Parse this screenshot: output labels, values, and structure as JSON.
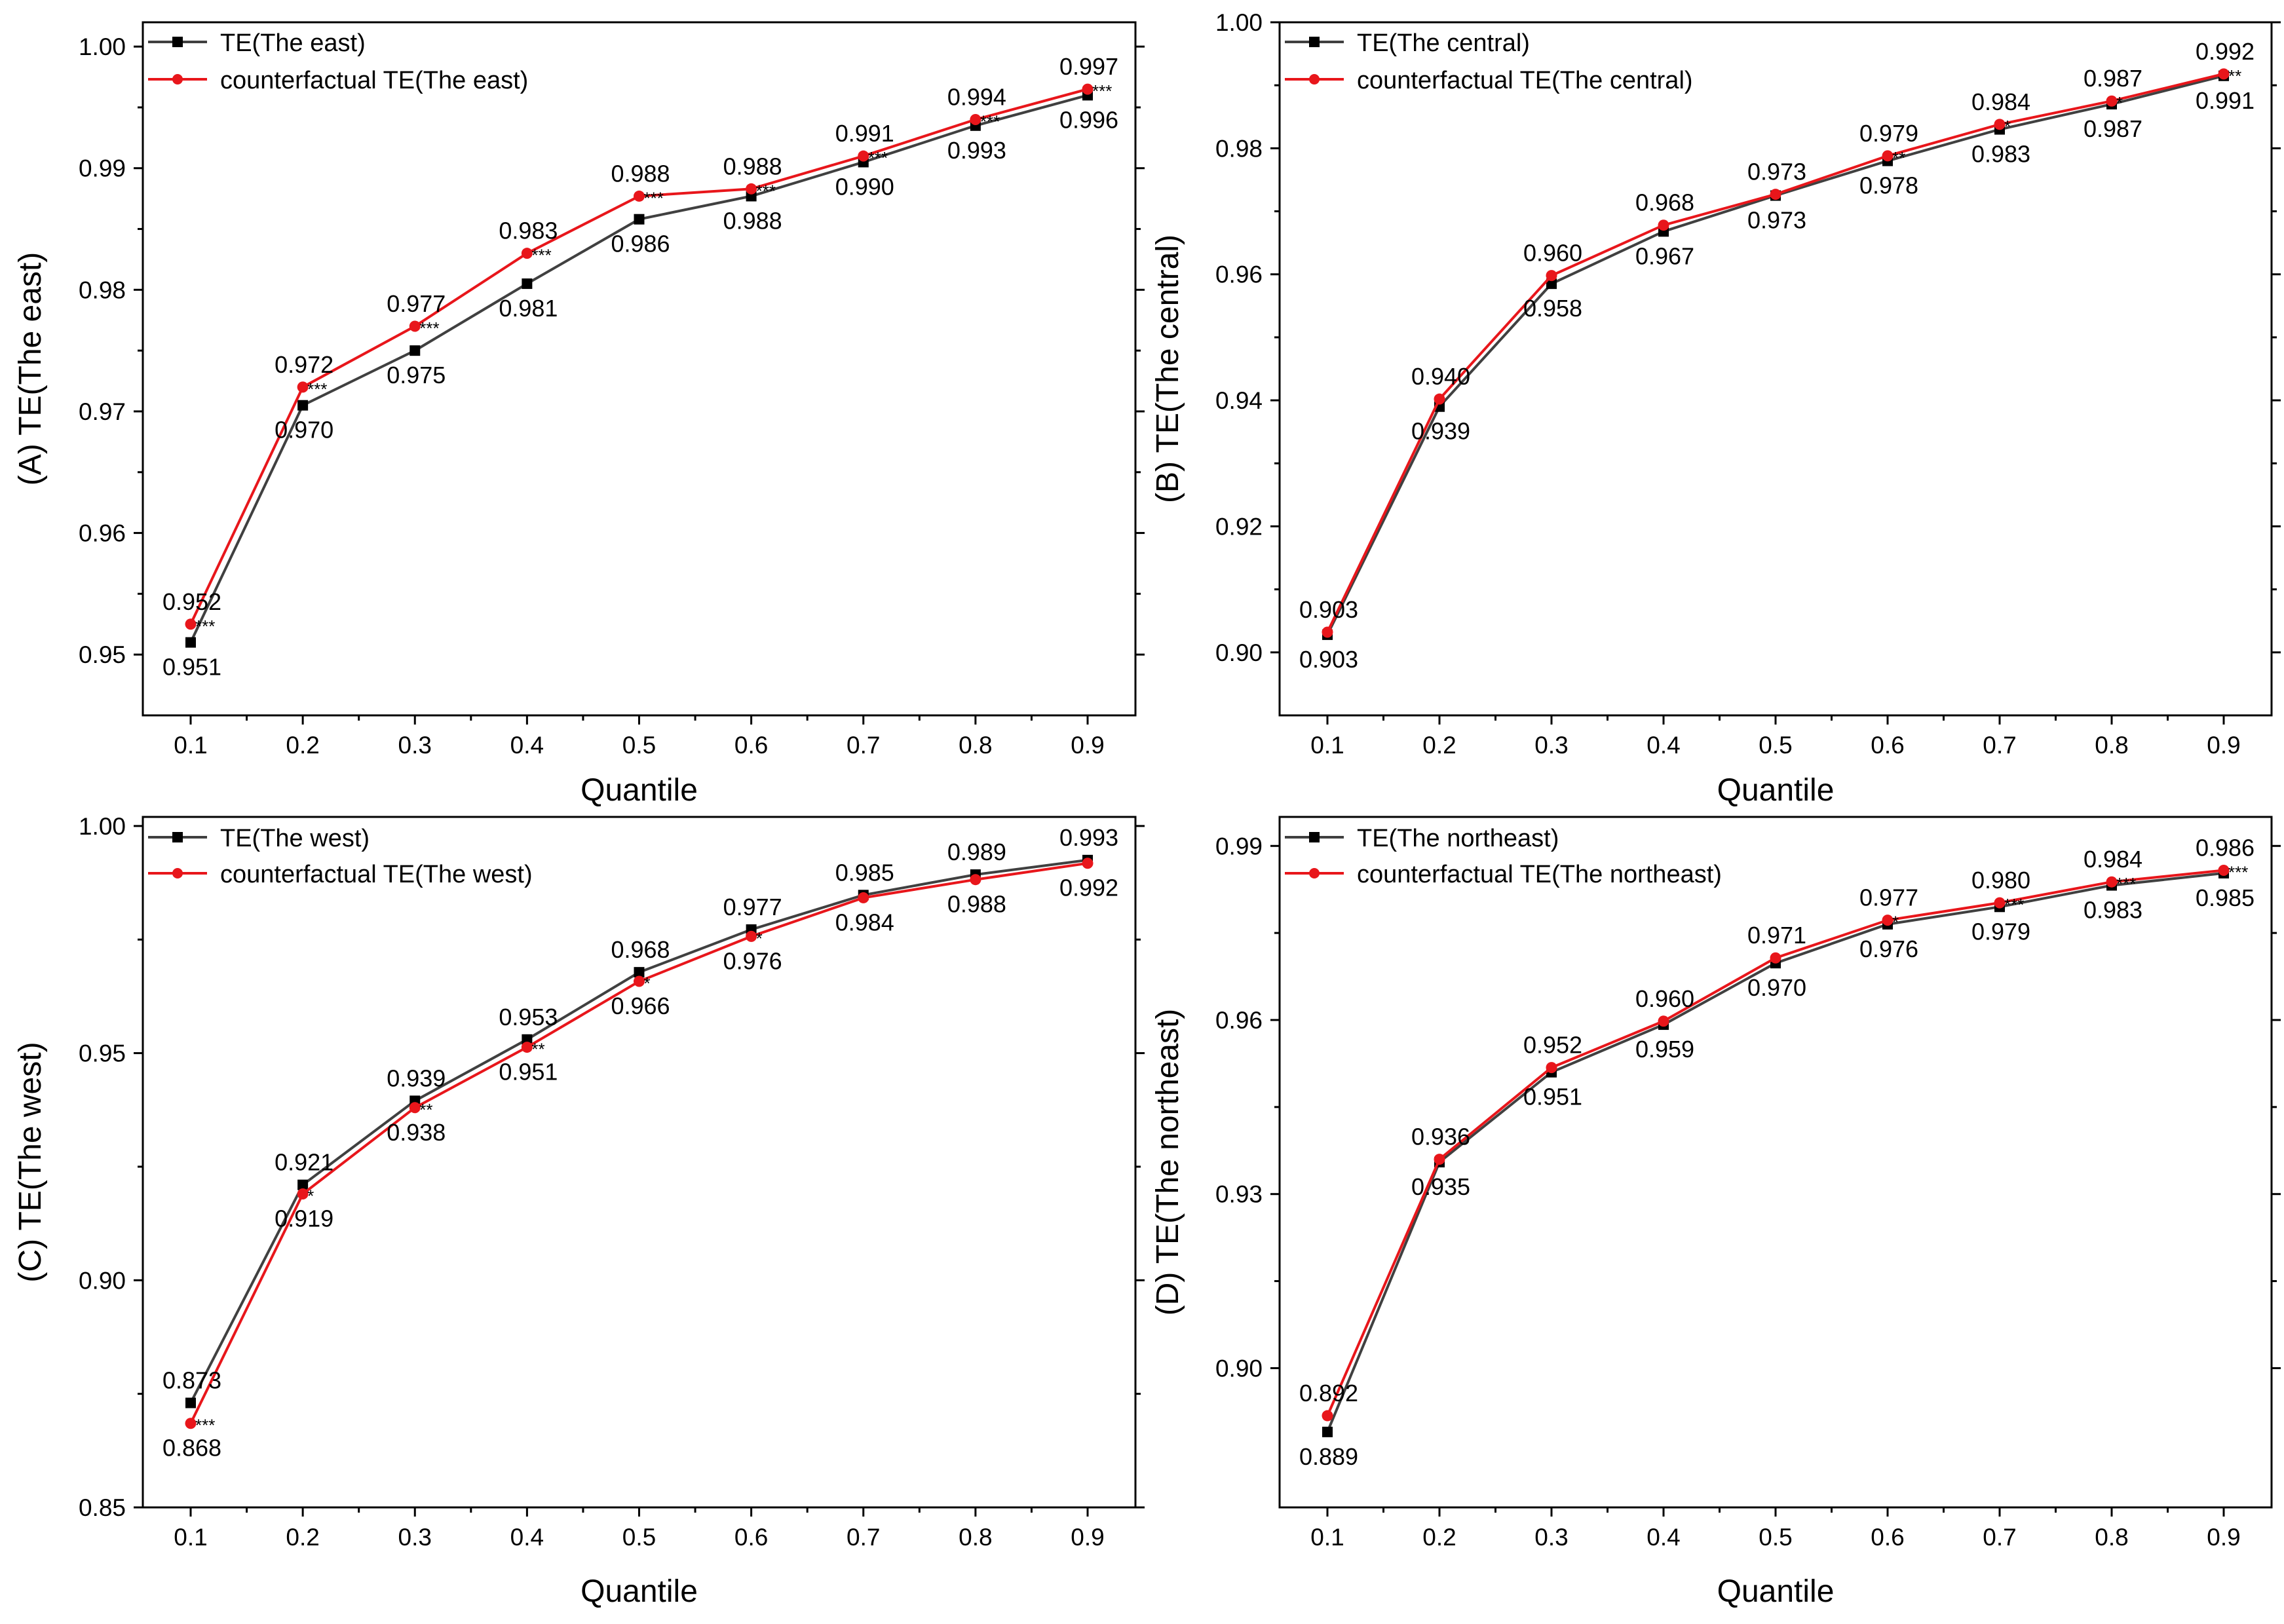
{
  "colors": {
    "te": "#404040",
    "cf": "#e8161b",
    "axis": "#000000"
  },
  "chart_data": [
    {
      "type": "line",
      "panel": "A",
      "ylabel": "(A) TE(The east)",
      "xlabel": "Quantile",
      "categories": [
        "0.1",
        "0.2",
        "0.3",
        "0.4",
        "0.5",
        "0.6",
        "0.7",
        "0.8",
        "0.9"
      ],
      "ylim": [
        0.945,
        1.002
      ],
      "yticks": [
        0.95,
        0.96,
        0.97,
        0.98,
        0.99,
        1.0
      ],
      "ytick_labels": [
        "0.95",
        "0.96",
        "0.97",
        "0.98",
        "0.99",
        "1.00"
      ],
      "series": [
        {
          "name": "TE(The east)",
          "values": [
            0.951,
            0.9705,
            0.975,
            0.9805,
            0.9858,
            0.9877,
            0.9905,
            0.9935,
            0.996
          ],
          "labels": [
            "0.951",
            "0.970",
            "0.975",
            "0.981",
            "0.986",
            "0.988",
            "0.990",
            "0.993",
            "0.996"
          ]
        },
        {
          "name": "counterfactual TE(The east)",
          "values": [
            0.9525,
            0.972,
            0.977,
            0.983,
            0.9877,
            0.9883,
            0.991,
            0.994,
            0.9965
          ],
          "labels": [
            "0.952",
            "0.972",
            "0.977",
            "0.983",
            "0.988",
            "0.988",
            "0.991",
            "0.994",
            "0.997"
          ],
          "stars": [
            "***",
            "***",
            "***",
            "***",
            "***",
            "***",
            "***",
            "***",
            "***"
          ]
        }
      ]
    },
    {
      "type": "line",
      "panel": "B",
      "ylabel": "(B) TE(The central)",
      "xlabel": "Quantile",
      "categories": [
        "0.1",
        "0.2",
        "0.3",
        "0.4",
        "0.5",
        "0.6",
        "0.7",
        "0.8",
        "0.9"
      ],
      "ylim": [
        0.89,
        1.0
      ],
      "yticks": [
        0.9,
        0.92,
        0.94,
        0.96,
        0.98,
        1.0
      ],
      "ytick_labels": [
        "0.90",
        "0.92",
        "0.94",
        "0.96",
        "0.98",
        "1.00"
      ],
      "series": [
        {
          "name": "TE(The central)",
          "values": [
            0.9028,
            0.939,
            0.9585,
            0.9668,
            0.9725,
            0.978,
            0.983,
            0.987,
            0.9915
          ],
          "labels": [
            "0.903",
            "0.939",
            "0.958",
            "0.967",
            "0.973",
            "0.978",
            "0.983",
            "0.987",
            "0.991"
          ]
        },
        {
          "name": "counterfactual TE(The central)",
          "values": [
            0.9032,
            0.9402,
            0.9598,
            0.9678,
            0.9727,
            0.9788,
            0.9838,
            0.9875,
            0.9918
          ],
          "labels": [
            "0.903",
            "0.940",
            "0.960",
            "0.968",
            "0.973",
            "0.979",
            "0.984",
            "0.987",
            "0.992"
          ],
          "stars": [
            "",
            "",
            "",
            "",
            "",
            "**",
            "*",
            "*",
            "**"
          ]
        }
      ]
    },
    {
      "type": "line",
      "panel": "C",
      "ylabel": "(C) TE(The west)",
      "xlabel": "Quantile",
      "categories": [
        "0.1",
        "0.2",
        "0.3",
        "0.4",
        "0.5",
        "0.6",
        "0.7",
        "0.8",
        "0.9"
      ],
      "ylim": [
        0.85,
        1.002
      ],
      "yticks": [
        0.85,
        0.9,
        0.95,
        1.0
      ],
      "ytick_labels": [
        "0.85",
        "0.90",
        "0.95",
        "1.00"
      ],
      "series": [
        {
          "name": "TE(The west)",
          "values": [
            0.873,
            0.921,
            0.9395,
            0.953,
            0.9678,
            0.9772,
            0.9848,
            0.9893,
            0.9925
          ],
          "labels": [
            "0.873",
            "0.921",
            "0.939",
            "0.953",
            "0.968",
            "0.977",
            "0.985",
            "0.989",
            "0.993"
          ]
        },
        {
          "name": "counterfactual TE(The west)",
          "values": [
            0.8685,
            0.919,
            0.938,
            0.9513,
            0.9658,
            0.9757,
            0.9842,
            0.9882,
            0.9918
          ],
          "labels": [
            "0.868",
            "0.919",
            "0.938",
            "0.951",
            "0.966",
            "0.976",
            "0.984",
            "0.988",
            "0.992"
          ],
          "stars": [
            "***",
            "*",
            "**",
            "**",
            "*",
            "*",
            "",
            "",
            ""
          ]
        }
      ]
    },
    {
      "type": "line",
      "panel": "D",
      "ylabel": "(D) TE(The northeast)",
      "xlabel": "Quantile",
      "categories": [
        "0.1",
        "0.2",
        "0.3",
        "0.4",
        "0.5",
        "0.6",
        "0.7",
        "0.8",
        "0.9"
      ],
      "ylim": [
        0.876,
        0.995
      ],
      "yticks": [
        0.9,
        0.93,
        0.96,
        0.99
      ],
      "ytick_labels": [
        "0.90",
        "0.93",
        "0.96",
        "0.99"
      ],
      "series": [
        {
          "name": "TE(The northeast)",
          "values": [
            0.889,
            0.9355,
            0.951,
            0.9592,
            0.9698,
            0.9765,
            0.9795,
            0.9832,
            0.9853
          ],
          "labels": [
            "0.889",
            "0.935",
            "0.951",
            "0.959",
            "0.970",
            "0.976",
            "0.979",
            "0.983",
            "0.985"
          ]
        },
        {
          "name": "counterfactual TE(The northeast)",
          "values": [
            0.8918,
            0.936,
            0.9518,
            0.9598,
            0.9707,
            0.9772,
            0.9802,
            0.9838,
            0.9858
          ],
          "labels": [
            "0.892",
            "0.936",
            "0.952",
            "0.960",
            "0.971",
            "0.977",
            "0.980",
            "0.984",
            "0.986"
          ],
          "stars": [
            "",
            "",
            "",
            "",
            "",
            "*",
            "***",
            "***",
            "***"
          ]
        }
      ]
    }
  ]
}
